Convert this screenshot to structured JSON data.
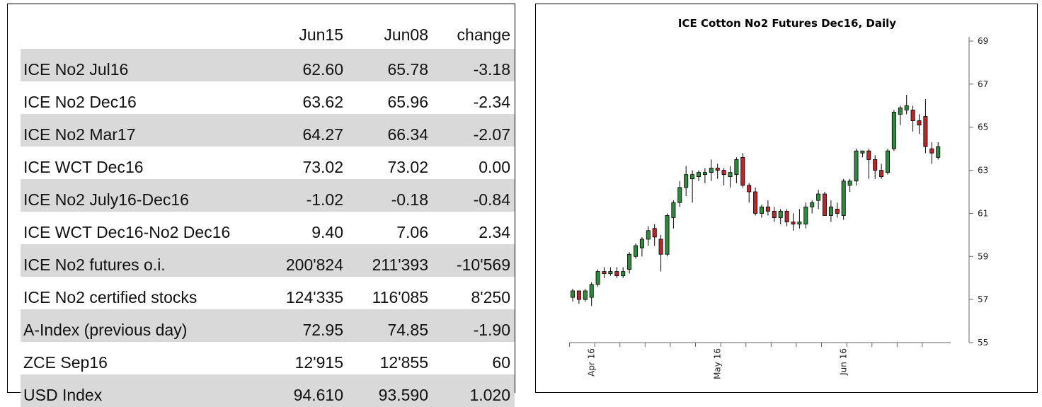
{
  "table": {
    "headers": [
      "",
      "Jun15",
      "Jun08",
      "change"
    ],
    "rows": [
      {
        "label": "ICE No2 Jul16",
        "jun15": "62.60",
        "jun08": "65.78",
        "change": "-3.18",
        "shaded": true
      },
      {
        "label": "ICE No2 Dec16",
        "jun15": "63.62",
        "jun08": "65.96",
        "change": "-2.34",
        "shaded": false
      },
      {
        "label": "ICE No2 Mar17",
        "jun15": "64.27",
        "jun08": "66.34",
        "change": "-2.07",
        "shaded": true
      },
      {
        "label": "ICE WCT Dec16",
        "jun15": "73.02",
        "jun08": "73.02",
        "change": "0.00",
        "shaded": false
      },
      {
        "label": "ICE No2 July16-Dec16",
        "jun15": "-1.02",
        "jun08": "-0.18",
        "change": "-0.84",
        "shaded": true
      },
      {
        "label": "ICE WCT Dec16-No2 Dec16",
        "jun15": "9.40",
        "jun08": "7.06",
        "change": "2.34",
        "shaded": false
      },
      {
        "label": "ICE No2 futures o.i.",
        "jun15": "200'824",
        "jun08": "211'393",
        "change": "-10'569",
        "shaded": true
      },
      {
        "label": "ICE No2 certified stocks",
        "jun15": "124'335",
        "jun08": "116'085",
        "change": "8'250",
        "shaded": false
      },
      {
        "label": "A-Index (previous day)",
        "jun15": "72.95",
        "jun08": "74.85",
        "change": "-1.90",
        "shaded": true
      },
      {
        "label": "ZCE Sep16",
        "jun15": "12'915",
        "jun08": "12'855",
        "change": "60",
        "shaded": false
      },
      {
        "label": "USD Index",
        "jun15": "94.610",
        "jun08": "93.590",
        "change": "1.020",
        "shaded": true
      }
    ]
  },
  "chart_data": {
    "type": "candlestick",
    "title": "ICE Cotton No2 Futures Dec16, Daily",
    "y_axis": {
      "position": "right",
      "ylim": [
        55,
        69
      ],
      "ticks": [
        55,
        57,
        59,
        61,
        63,
        65,
        67,
        69
      ]
    },
    "x_axis": {
      "tick_labels": [
        {
          "label": "Apr 16",
          "index": 3
        },
        {
          "label": "May 16",
          "index": 23
        },
        {
          "label": "Jun 16",
          "index": 43
        }
      ]
    },
    "colors": {
      "up": "#2e8b3e",
      "down": "#c0242b",
      "outline": "#000000"
    },
    "candles": [
      {
        "o": 57.1,
        "h": 57.5,
        "l": 56.9,
        "c": 57.4
      },
      {
        "o": 57.4,
        "h": 57.4,
        "l": 56.8,
        "c": 57.0
      },
      {
        "o": 57.0,
        "h": 57.5,
        "l": 56.9,
        "c": 57.4
      },
      {
        "o": 57.1,
        "h": 57.8,
        "l": 56.7,
        "c": 57.7
      },
      {
        "o": 57.7,
        "h": 58.4,
        "l": 57.6,
        "c": 58.3
      },
      {
        "o": 58.3,
        "h": 58.5,
        "l": 58.0,
        "c": 58.2
      },
      {
        "o": 58.2,
        "h": 58.5,
        "l": 58.1,
        "c": 58.3
      },
      {
        "o": 58.3,
        "h": 58.5,
        "l": 58.0,
        "c": 58.1
      },
      {
        "o": 58.1,
        "h": 58.5,
        "l": 58.0,
        "c": 58.3
      },
      {
        "o": 58.4,
        "h": 59.2,
        "l": 58.2,
        "c": 59.1
      },
      {
        "o": 59.0,
        "h": 59.6,
        "l": 58.9,
        "c": 59.5
      },
      {
        "o": 59.4,
        "h": 59.9,
        "l": 59.0,
        "c": 59.8
      },
      {
        "o": 59.8,
        "h": 60.4,
        "l": 59.5,
        "c": 60.2
      },
      {
        "o": 60.3,
        "h": 60.5,
        "l": 59.5,
        "c": 59.9
      },
      {
        "o": 59.8,
        "h": 60.0,
        "l": 58.3,
        "c": 59.1
      },
      {
        "o": 59.1,
        "h": 61.0,
        "l": 59.0,
        "c": 60.9
      },
      {
        "o": 60.8,
        "h": 61.6,
        "l": 60.3,
        "c": 61.5
      },
      {
        "o": 61.5,
        "h": 62.5,
        "l": 61.3,
        "c": 62.2
      },
      {
        "o": 62.2,
        "h": 63.2,
        "l": 61.8,
        "c": 62.8
      },
      {
        "o": 62.6,
        "h": 63.0,
        "l": 61.5,
        "c": 62.8
      },
      {
        "o": 62.7,
        "h": 63.0,
        "l": 62.5,
        "c": 62.9
      },
      {
        "o": 62.8,
        "h": 63.1,
        "l": 62.4,
        "c": 62.9
      },
      {
        "o": 62.9,
        "h": 63.5,
        "l": 62.5,
        "c": 63.1
      },
      {
        "o": 63.1,
        "h": 63.3,
        "l": 62.6,
        "c": 63.0
      },
      {
        "o": 63.0,
        "h": 63.1,
        "l": 62.3,
        "c": 62.8
      },
      {
        "o": 62.7,
        "h": 63.2,
        "l": 62.2,
        "c": 62.9
      },
      {
        "o": 62.8,
        "h": 63.6,
        "l": 62.4,
        "c": 63.5
      },
      {
        "o": 63.6,
        "h": 63.8,
        "l": 62.2,
        "c": 62.3
      },
      {
        "o": 62.3,
        "h": 62.4,
        "l": 61.5,
        "c": 62.0
      },
      {
        "o": 62.0,
        "h": 62.2,
        "l": 60.9,
        "c": 61.0
      },
      {
        "o": 61.0,
        "h": 61.4,
        "l": 60.8,
        "c": 61.3
      },
      {
        "o": 61.3,
        "h": 61.6,
        "l": 60.9,
        "c": 61.1
      },
      {
        "o": 61.1,
        "h": 61.3,
        "l": 60.6,
        "c": 60.8
      },
      {
        "o": 60.8,
        "h": 61.2,
        "l": 60.5,
        "c": 61.1
      },
      {
        "o": 61.1,
        "h": 61.2,
        "l": 60.4,
        "c": 60.6
      },
      {
        "o": 60.6,
        "h": 61.0,
        "l": 60.2,
        "c": 60.5
      },
      {
        "o": 60.5,
        "h": 61.2,
        "l": 60.3,
        "c": 60.6
      },
      {
        "o": 60.5,
        "h": 61.5,
        "l": 60.3,
        "c": 61.3
      },
      {
        "o": 61.3,
        "h": 61.6,
        "l": 61.0,
        "c": 61.5
      },
      {
        "o": 61.6,
        "h": 62.1,
        "l": 61.2,
        "c": 61.9
      },
      {
        "o": 61.9,
        "h": 62.0,
        "l": 60.9,
        "c": 60.9
      },
      {
        "o": 60.9,
        "h": 61.6,
        "l": 60.6,
        "c": 61.3
      },
      {
        "o": 61.2,
        "h": 61.5,
        "l": 60.8,
        "c": 61.0
      },
      {
        "o": 60.9,
        "h": 62.6,
        "l": 60.7,
        "c": 62.5
      },
      {
        "o": 62.3,
        "h": 62.6,
        "l": 62.0,
        "c": 62.5
      },
      {
        "o": 62.5,
        "h": 64.0,
        "l": 62.3,
        "c": 63.9
      },
      {
        "o": 63.8,
        "h": 63.9,
        "l": 63.6,
        "c": 63.9
      },
      {
        "o": 63.9,
        "h": 64.0,
        "l": 62.6,
        "c": 63.5
      },
      {
        "o": 63.5,
        "h": 63.7,
        "l": 62.6,
        "c": 63.0
      },
      {
        "o": 63.0,
        "h": 63.3,
        "l": 62.6,
        "c": 62.7
      },
      {
        "o": 62.9,
        "h": 64.0,
        "l": 62.8,
        "c": 63.9
      },
      {
        "o": 64.0,
        "h": 65.8,
        "l": 63.9,
        "c": 65.7
      },
      {
        "o": 65.6,
        "h": 66.0,
        "l": 65.1,
        "c": 65.9
      },
      {
        "o": 65.8,
        "h": 66.5,
        "l": 65.6,
        "c": 66.0
      },
      {
        "o": 65.8,
        "h": 66.0,
        "l": 64.8,
        "c": 65.3
      },
      {
        "o": 65.3,
        "h": 65.6,
        "l": 64.7,
        "c": 65.1
      },
      {
        "o": 65.5,
        "h": 66.3,
        "l": 63.8,
        "c": 64.1
      },
      {
        "o": 64.0,
        "h": 64.3,
        "l": 63.3,
        "c": 63.8
      },
      {
        "o": 63.6,
        "h": 64.3,
        "l": 63.5,
        "c": 64.1
      }
    ]
  }
}
